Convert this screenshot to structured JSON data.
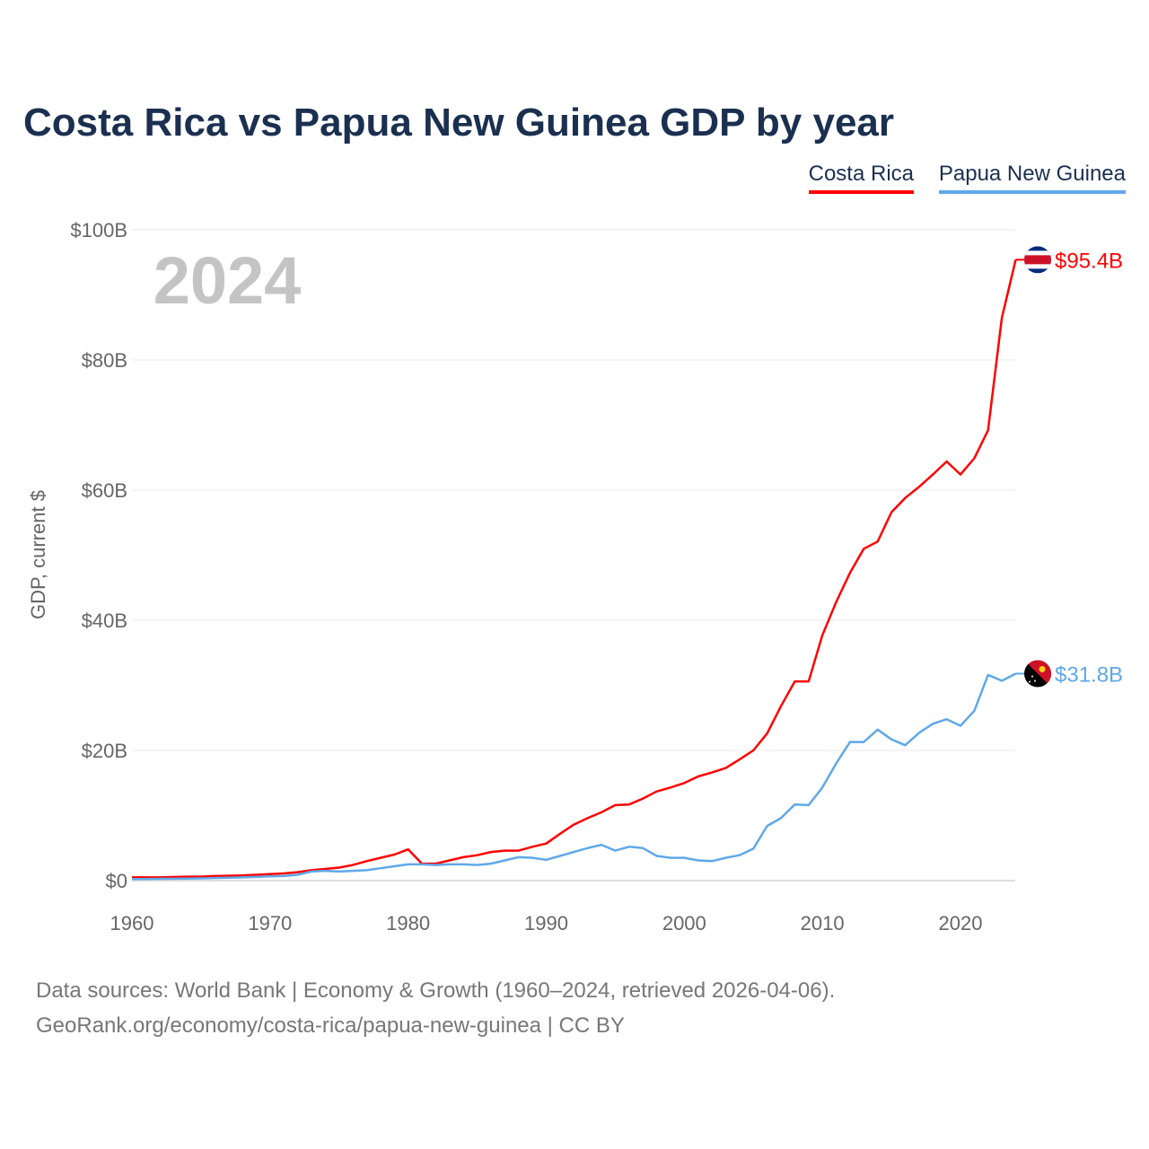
{
  "chart_data": {
    "type": "line",
    "title": "Costa Rica vs Papua New Guinea GDP by year",
    "xlabel": "",
    "ylabel": "GDP, current $",
    "year_watermark": "2024",
    "xlim": [
      1960,
      2024
    ],
    "ylim": [
      0,
      100
    ],
    "units": "billions USD",
    "x_ticks": [
      "1960",
      "1970",
      "1980",
      "1990",
      "2000",
      "2010",
      "2020"
    ],
    "y_ticks": [
      {
        "v": 0,
        "label": "$0"
      },
      {
        "v": 20,
        "label": "$20B"
      },
      {
        "v": 40,
        "label": "$40B"
      },
      {
        "v": 60,
        "label": "$60B"
      },
      {
        "v": 80,
        "label": "$80B"
      },
      {
        "v": 100,
        "label": "$100B"
      }
    ],
    "grid": true,
    "legend_position": "top-right",
    "x": [
      1960,
      1961,
      1962,
      1963,
      1964,
      1965,
      1966,
      1967,
      1968,
      1969,
      1970,
      1971,
      1972,
      1973,
      1974,
      1975,
      1976,
      1977,
      1978,
      1979,
      1980,
      1981,
      1982,
      1983,
      1984,
      1985,
      1986,
      1987,
      1988,
      1989,
      1990,
      1991,
      1992,
      1993,
      1994,
      1995,
      1996,
      1997,
      1998,
      1999,
      2000,
      2001,
      2002,
      2003,
      2004,
      2005,
      2006,
      2007,
      2008,
      2009,
      2010,
      2011,
      2012,
      2013,
      2014,
      2015,
      2016,
      2017,
      2018,
      2019,
      2020,
      2021,
      2022,
      2023,
      2024
    ],
    "series": [
      {
        "name": "Costa Rica",
        "color": "#ff0000",
        "end_label": "$95.4B",
        "flag": "costa-rica-flag-icon",
        "values": [
          0.5,
          0.5,
          0.5,
          0.55,
          0.6,
          0.6,
          0.7,
          0.75,
          0.8,
          0.9,
          1.0,
          1.1,
          1.3,
          1.6,
          1.8,
          2.0,
          2.4,
          3.0,
          3.5,
          4.0,
          4.8,
          2.6,
          2.6,
          3.1,
          3.6,
          3.9,
          4.4,
          4.6,
          4.6,
          5.2,
          5.7,
          7.2,
          8.6,
          9.6,
          10.5,
          11.6,
          11.7,
          12.6,
          13.7,
          14.3,
          15.0,
          16.0,
          16.6,
          17.3,
          18.6,
          20.0,
          22.6,
          26.8,
          30.6,
          30.6,
          37.7,
          42.8,
          47.3,
          51.0,
          52.1,
          56.6,
          58.8,
          60.5,
          62.4,
          64.4,
          62.4,
          64.9,
          69.2,
          86.5,
          95.4
        ]
      },
      {
        "name": "Papua New Guinea",
        "color": "#5fa8e8",
        "end_label": "$31.8B",
        "flag": "papua-new-guinea-flag-icon",
        "values": [
          0.23,
          0.25,
          0.27,
          0.29,
          0.32,
          0.35,
          0.4,
          0.45,
          0.5,
          0.57,
          0.65,
          0.7,
          0.9,
          1.4,
          1.5,
          1.4,
          1.5,
          1.6,
          1.9,
          2.2,
          2.5,
          2.5,
          2.4,
          2.5,
          2.5,
          2.4,
          2.6,
          3.1,
          3.6,
          3.5,
          3.2,
          3.8,
          4.4,
          5.0,
          5.5,
          4.6,
          5.2,
          5.0,
          3.8,
          3.5,
          3.5,
          3.1,
          3.0,
          3.5,
          3.9,
          4.9,
          8.4,
          9.6,
          11.7,
          11.6,
          14.3,
          18.0,
          21.3,
          21.3,
          23.2,
          21.7,
          20.8,
          22.7,
          24.1,
          24.8,
          23.8,
          26.1,
          31.6,
          30.7,
          31.8
        ]
      }
    ]
  },
  "footer": {
    "line1": "Data sources: World Bank | Economy & Growth (1960–2024, retrieved 2026-04-06).",
    "line2": "GeoRank.org/economy/costa-rica/papua-new-guinea | CC BY"
  }
}
